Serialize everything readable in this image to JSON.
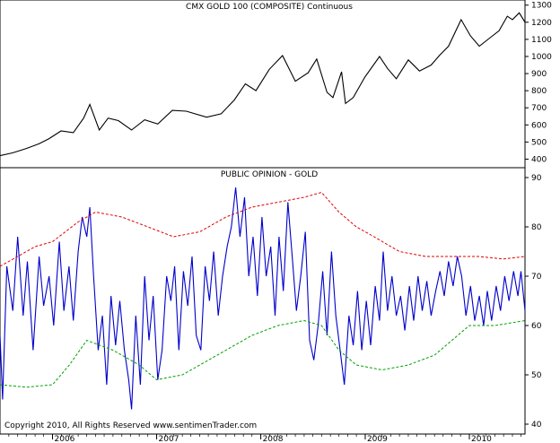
{
  "colors": {
    "price_line": "#000000",
    "opinion_line": "#0000cc",
    "upper_band": "#e00000",
    "lower_band": "#00a000",
    "frame": "#000000",
    "background": "#ffffff"
  },
  "copyright": "Copyright 2010, All Rights Reserved  www.sentimenTrader.com",
  "chart_data": [
    {
      "type": "line",
      "title": "CMX GOLD 100 (COMPOSITE) Continuous",
      "ylim": [
        350,
        1330
      ],
      "yticks": [
        1300,
        1200,
        1100,
        1000,
        900,
        800,
        700,
        600,
        500,
        400
      ],
      "x_start": "2005-07-01",
      "x_end": "2010-07-15",
      "grid": false,
      "series": [
        {
          "name": "",
          "points": [
            [
              "2005-07-01",
              420
            ],
            [
              "2005-08-15",
              437
            ],
            [
              "2005-10-01",
              462
            ],
            [
              "2005-11-15",
              490
            ],
            [
              "2005-12-20",
              520
            ],
            [
              "2006-01-31",
              565
            ],
            [
              "2006-03-15",
              555
            ],
            [
              "2006-04-20",
              640
            ],
            [
              "2006-05-12",
              720
            ],
            [
              "2006-06-14",
              570
            ],
            [
              "2006-07-15",
              640
            ],
            [
              "2006-08-20",
              625
            ],
            [
              "2006-10-05",
              570
            ],
            [
              "2006-11-20",
              630
            ],
            [
              "2007-01-05",
              605
            ],
            [
              "2007-02-25",
              685
            ],
            [
              "2007-04-15",
              680
            ],
            [
              "2007-06-25",
              645
            ],
            [
              "2007-08-15",
              665
            ],
            [
              "2007-09-30",
              745
            ],
            [
              "2007-11-08",
              840
            ],
            [
              "2007-12-15",
              800
            ],
            [
              "2008-01-31",
              925
            ],
            [
              "2008-03-17",
              1005
            ],
            [
              "2008-05-01",
              855
            ],
            [
              "2008-06-15",
              905
            ],
            [
              "2008-07-15",
              985
            ],
            [
              "2008-08-20",
              790
            ],
            [
              "2008-09-10",
              760
            ],
            [
              "2008-10-10",
              910
            ],
            [
              "2008-10-24",
              725
            ],
            [
              "2008-11-20",
              760
            ],
            [
              "2008-12-31",
              880
            ],
            [
              "2009-02-20",
              1000
            ],
            [
              "2009-03-20",
              930
            ],
            [
              "2009-04-20",
              870
            ],
            [
              "2009-06-01",
              980
            ],
            [
              "2009-07-10",
              915
            ],
            [
              "2009-08-20",
              950
            ],
            [
              "2009-09-20",
              1010
            ],
            [
              "2009-10-20",
              1060
            ],
            [
              "2009-12-03",
              1215
            ],
            [
              "2010-01-05",
              1120
            ],
            [
              "2010-02-05",
              1060
            ],
            [
              "2010-03-15",
              1110
            ],
            [
              "2010-04-15",
              1150
            ],
            [
              "2010-05-14",
              1235
            ],
            [
              "2010-06-01",
              1215
            ],
            [
              "2010-06-25",
              1255
            ],
            [
              "2010-07-15",
              1200
            ]
          ]
        }
      ]
    },
    {
      "type": "line",
      "title": "PUBLIC OPINION - GOLD",
      "ylim": [
        38,
        92
      ],
      "yticks": [
        90,
        80,
        70,
        60,
        50,
        40
      ],
      "x_start": "2005-07-01",
      "x_end": "2010-07-15",
      "xticks": [
        {
          "label": "2006",
          "date": "2006-01-01"
        },
        {
          "label": "2007",
          "date": "2007-01-01"
        },
        {
          "label": "2008",
          "date": "2008-01-01"
        },
        {
          "label": "2009",
          "date": "2009-01-01"
        },
        {
          "label": "2010",
          "date": "2010-01-01"
        }
      ],
      "grid": false,
      "series": [
        {
          "name": "",
          "style": "solid",
          "color_key": "opinion_line",
          "points": [
            [
              "2005-07-01",
              58
            ],
            [
              "2005-07-10",
              45
            ],
            [
              "2005-07-25",
              72
            ],
            [
              "2005-08-15",
              63
            ],
            [
              "2005-09-01",
              78
            ],
            [
              "2005-09-20",
              62
            ],
            [
              "2005-10-05",
              73
            ],
            [
              "2005-10-25",
              55
            ],
            [
              "2005-11-15",
              74
            ],
            [
              "2005-12-01",
              64
            ],
            [
              "2005-12-20",
              70
            ],
            [
              "2006-01-05",
              60
            ],
            [
              "2006-01-25",
              77
            ],
            [
              "2006-02-10",
              63
            ],
            [
              "2006-02-28",
              72
            ],
            [
              "2006-03-15",
              61
            ],
            [
              "2006-04-01",
              75
            ],
            [
              "2006-04-15",
              82
            ],
            [
              "2006-05-01",
              78
            ],
            [
              "2006-05-12",
              84
            ],
            [
              "2006-05-25",
              70
            ],
            [
              "2006-06-10",
              55
            ],
            [
              "2006-06-25",
              62
            ],
            [
              "2006-07-10",
              48
            ],
            [
              "2006-07-25",
              66
            ],
            [
              "2006-08-10",
              56
            ],
            [
              "2006-08-25",
              65
            ],
            [
              "2006-09-10",
              55
            ],
            [
              "2006-09-25",
              49
            ],
            [
              "2006-10-05",
              43
            ],
            [
              "2006-10-20",
              62
            ],
            [
              "2006-11-05",
              48
            ],
            [
              "2006-11-20",
              70
            ],
            [
              "2006-12-05",
              57
            ],
            [
              "2006-12-20",
              66
            ],
            [
              "2007-01-05",
              49
            ],
            [
              "2007-01-20",
              55
            ],
            [
              "2007-02-05",
              70
            ],
            [
              "2007-02-20",
              65
            ],
            [
              "2007-03-05",
              72
            ],
            [
              "2007-03-20",
              55
            ],
            [
              "2007-04-05",
              71
            ],
            [
              "2007-04-20",
              64
            ],
            [
              "2007-05-05",
              74
            ],
            [
              "2007-05-20",
              58
            ],
            [
              "2007-06-05",
              55
            ],
            [
              "2007-06-20",
              72
            ],
            [
              "2007-07-05",
              65
            ],
            [
              "2007-07-20",
              75
            ],
            [
              "2007-08-05",
              62
            ],
            [
              "2007-08-20",
              70
            ],
            [
              "2007-09-05",
              76
            ],
            [
              "2007-09-20",
              80
            ],
            [
              "2007-10-05",
              88
            ],
            [
              "2007-10-20",
              78
            ],
            [
              "2007-11-05",
              86
            ],
            [
              "2007-11-20",
              70
            ],
            [
              "2007-12-05",
              78
            ],
            [
              "2007-12-20",
              66
            ],
            [
              "2008-01-05",
              82
            ],
            [
              "2008-01-20",
              70
            ],
            [
              "2008-02-05",
              76
            ],
            [
              "2008-02-20",
              62
            ],
            [
              "2008-03-05",
              78
            ],
            [
              "2008-03-20",
              67
            ],
            [
              "2008-04-05",
              85
            ],
            [
              "2008-04-20",
              74
            ],
            [
              "2008-05-05",
              63
            ],
            [
              "2008-05-20",
              70
            ],
            [
              "2008-06-05",
              79
            ],
            [
              "2008-06-20",
              57
            ],
            [
              "2008-07-05",
              53
            ],
            [
              "2008-07-20",
              60
            ],
            [
              "2008-08-05",
              71
            ],
            [
              "2008-08-20",
              58
            ],
            [
              "2008-09-05",
              75
            ],
            [
              "2008-09-20",
              62
            ],
            [
              "2008-10-05",
              55
            ],
            [
              "2008-10-20",
              48
            ],
            [
              "2008-11-05",
              62
            ],
            [
              "2008-11-20",
              56
            ],
            [
              "2008-12-05",
              67
            ],
            [
              "2008-12-20",
              55
            ],
            [
              "2009-01-05",
              65
            ],
            [
              "2009-01-20",
              56
            ],
            [
              "2009-02-05",
              68
            ],
            [
              "2009-02-20",
              61
            ],
            [
              "2009-03-05",
              75
            ],
            [
              "2009-03-20",
              63
            ],
            [
              "2009-04-05",
              70
            ],
            [
              "2009-04-20",
              62
            ],
            [
              "2009-05-05",
              66
            ],
            [
              "2009-05-20",
              59
            ],
            [
              "2009-06-05",
              68
            ],
            [
              "2009-06-20",
              61
            ],
            [
              "2009-07-05",
              70
            ],
            [
              "2009-07-20",
              63
            ],
            [
              "2009-08-05",
              69
            ],
            [
              "2009-08-20",
              62
            ],
            [
              "2009-09-05",
              67
            ],
            [
              "2009-09-20",
              71
            ],
            [
              "2009-10-05",
              66
            ],
            [
              "2009-10-20",
              73
            ],
            [
              "2009-11-05",
              68
            ],
            [
              "2009-11-20",
              74
            ],
            [
              "2009-12-05",
              70
            ],
            [
              "2009-12-20",
              62
            ],
            [
              "2010-01-05",
              68
            ],
            [
              "2010-01-20",
              61
            ],
            [
              "2010-02-05",
              66
            ],
            [
              "2010-02-20",
              60
            ],
            [
              "2010-03-05",
              67
            ],
            [
              "2010-03-20",
              61
            ],
            [
              "2010-04-05",
              68
            ],
            [
              "2010-04-20",
              63
            ],
            [
              "2010-05-05",
              70
            ],
            [
              "2010-05-20",
              65
            ],
            [
              "2010-06-05",
              71
            ],
            [
              "2010-06-20",
              66
            ],
            [
              "2010-07-01",
              71
            ],
            [
              "2010-07-15",
              63
            ]
          ]
        },
        {
          "name": "",
          "style": "dashed",
          "color_key": "upper_band",
          "points": [
            [
              "2005-07-01",
              72
            ],
            [
              "2005-09-01",
              74
            ],
            [
              "2005-11-01",
              76
            ],
            [
              "2006-01-01",
              77
            ],
            [
              "2006-04-01",
              81
            ],
            [
              "2006-06-01",
              83
            ],
            [
              "2006-09-01",
              82
            ],
            [
              "2006-12-01",
              80
            ],
            [
              "2007-03-01",
              78
            ],
            [
              "2007-06-01",
              79
            ],
            [
              "2007-09-01",
              82
            ],
            [
              "2007-12-01",
              84
            ],
            [
              "2008-03-01",
              85
            ],
            [
              "2008-06-01",
              86
            ],
            [
              "2008-08-01",
              87
            ],
            [
              "2008-10-01",
              83
            ],
            [
              "2008-12-01",
              80
            ],
            [
              "2009-02-01",
              78
            ],
            [
              "2009-05-01",
              75
            ],
            [
              "2009-08-01",
              74
            ],
            [
              "2009-11-01",
              74
            ],
            [
              "2010-02-01",
              74
            ],
            [
              "2010-05-01",
              73.5
            ],
            [
              "2010-07-15",
              74
            ]
          ]
        },
        {
          "name": "",
          "style": "dashed",
          "color_key": "lower_band",
          "points": [
            [
              "2005-07-01",
              48
            ],
            [
              "2005-10-01",
              47.5
            ],
            [
              "2006-01-01",
              48
            ],
            [
              "2006-03-01",
              52
            ],
            [
              "2006-05-01",
              57
            ],
            [
              "2006-08-01",
              55
            ],
            [
              "2006-11-01",
              52
            ],
            [
              "2007-01-01",
              49
            ],
            [
              "2007-04-01",
              50
            ],
            [
              "2007-06-01",
              52
            ],
            [
              "2007-09-01",
              55
            ],
            [
              "2007-12-01",
              58
            ],
            [
              "2008-03-01",
              60
            ],
            [
              "2008-06-01",
              61
            ],
            [
              "2008-08-01",
              60
            ],
            [
              "2008-10-01",
              55
            ],
            [
              "2008-12-01",
              52
            ],
            [
              "2009-03-01",
              51
            ],
            [
              "2009-06-01",
              52
            ],
            [
              "2009-09-01",
              54
            ],
            [
              "2009-11-01",
              57
            ],
            [
              "2010-01-01",
              60
            ],
            [
              "2010-04-01",
              60
            ],
            [
              "2010-07-15",
              61
            ]
          ]
        }
      ]
    }
  ]
}
